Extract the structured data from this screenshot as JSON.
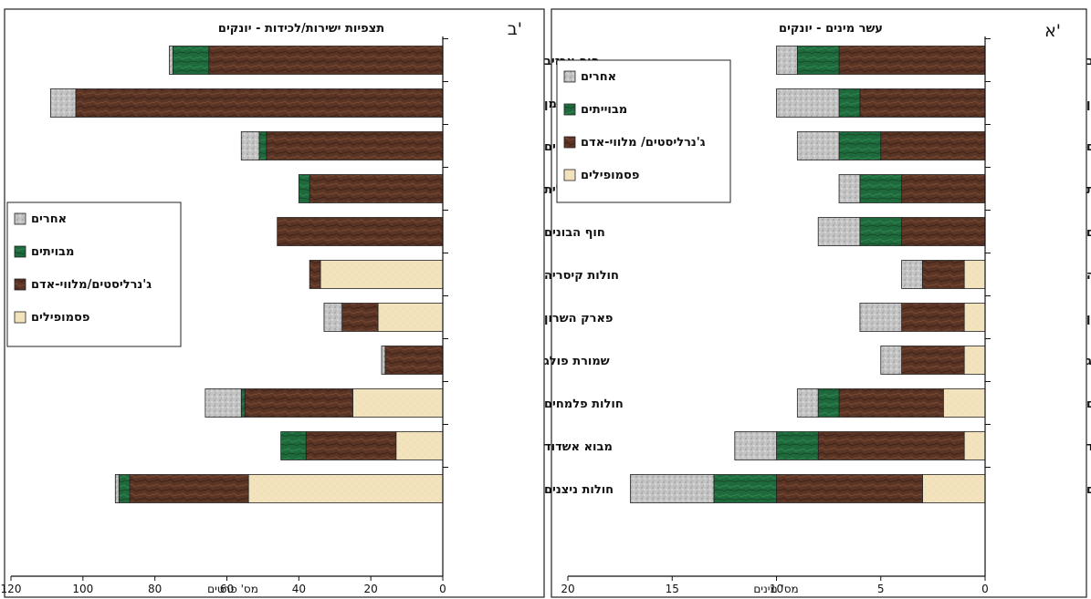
{
  "colors": {
    "others": "#bdbdbd",
    "migratory": "#1f6a3c",
    "generalists": "#5a3424",
    "psammophiles": "#f2e3bd"
  },
  "chart_data": [
    {
      "type": "bar",
      "orientation": "horizontal",
      "stacked": true,
      "panel_label": "א'",
      "title": "עשר מינים - יונקים",
      "xlabel": "מס' מינים",
      "ylabel": "",
      "xlim": [
        0,
        20
      ],
      "x_direction": "reversed",
      "xticks": [
        "0",
        "5",
        "10",
        "15",
        "20"
      ],
      "grid": false,
      "legend_position": "top-left",
      "legend_order": [
        "אחרים",
        "מבוייתים",
        "ג'נרליסטים/ מלווי-אדם",
        "פסמופילים"
      ],
      "categories": [
        "חוף אכזיב",
        "שפך הנעמן",
        "קריית-ים",
        "חוף עתלית",
        "חוף הבונים",
        "חולות קיסריה",
        "פארק השרון",
        "שמורת פולג",
        "חולות פלמחים",
        "מבוא אשדוד",
        "חולות ניצנים"
      ],
      "series": [
        {
          "name": "פסמופילים",
          "color_key": "psammophiles",
          "values": [
            0,
            0,
            0,
            0,
            0,
            1,
            1,
            1,
            2,
            1,
            3
          ]
        },
        {
          "name": "ג'נרליסטים/ מלווי-אדם",
          "color_key": "generalists",
          "values": [
            7,
            6,
            5,
            4,
            4,
            2,
            3,
            3,
            5,
            7,
            7
          ]
        },
        {
          "name": "מבוייתים",
          "color_key": "migratory",
          "values": [
            2,
            1,
            2,
            2,
            2,
            0,
            0,
            0,
            1,
            2,
            3
          ]
        },
        {
          "name": "אחרים",
          "color_key": "others",
          "values": [
            1,
            3,
            2,
            1,
            2,
            1,
            2,
            1,
            1,
            2,
            4
          ]
        }
      ]
    },
    {
      "type": "bar",
      "orientation": "horizontal",
      "stacked": true,
      "panel_label": "ב'",
      "title": "תצפיות ישירות/לכידות - יונקים",
      "xlabel": "מס' פרטים",
      "ylabel": "",
      "xlim": [
        0,
        120
      ],
      "x_direction": "reversed",
      "xticks": [
        "0",
        "20",
        "40",
        "60",
        "80",
        "100",
        "120"
      ],
      "grid": false,
      "legend_position": "middle-left",
      "legend_order": [
        "אחרים",
        "מבויתים",
        "ג'נרליסטים/מלווי-אדם",
        "פסמופילים"
      ],
      "categories": [
        "חוף אכזיב",
        "שפך הנעמן",
        "קריית-ים",
        "חוף עתלית",
        "חוף הבונים",
        "חולות קיסריה",
        "פארק השרון",
        "שמורת פולג",
        "חולות פלמחים",
        "מבוא אשדוד",
        "חולות ניצנים"
      ],
      "series": [
        {
          "name": "פסמופילים",
          "color_key": "psammophiles",
          "values": [
            0,
            0,
            0,
            0,
            0,
            34,
            18,
            0,
            25,
            13,
            54
          ]
        },
        {
          "name": "ג'נרליסטים/מלווי-אדם",
          "color_key": "generalists",
          "values": [
            65,
            102,
            49,
            37,
            46,
            3,
            10,
            16,
            30,
            25,
            33
          ]
        },
        {
          "name": "מבויתים",
          "color_key": "migratory",
          "values": [
            10,
            0,
            2,
            3,
            0,
            0,
            0,
            0,
            1,
            7,
            3
          ]
        },
        {
          "name": "אחרים",
          "color_key": "others",
          "values": [
            1,
            7,
            5,
            0,
            0,
            0,
            5,
            1,
            10,
            0,
            1
          ]
        }
      ]
    }
  ]
}
